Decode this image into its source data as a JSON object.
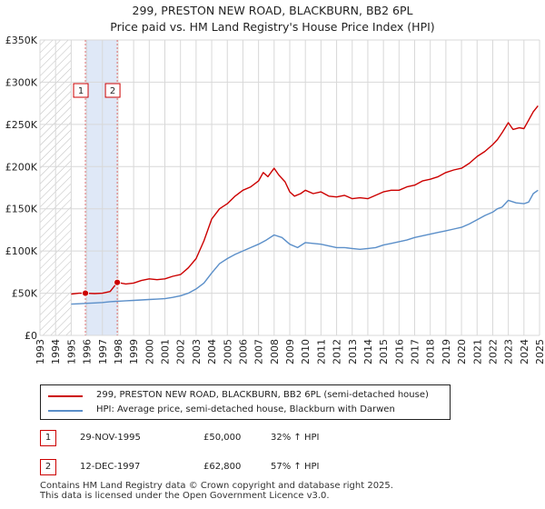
{
  "title_line1": "299, PRESTON NEW ROAD, BLACKBURN, BB2 6PL",
  "title_line2": "Price paid vs. HM Land Registry's House Price Index (HPI)",
  "chart_data": {
    "type": "line",
    "title": "299, PRESTON NEW ROAD, BLACKBURN, BB2 6PL — Price paid vs. HM Land Registry's House Price Index (HPI)",
    "xlabel": "",
    "ylabel": "",
    "xlim": [
      1993,
      2025
    ],
    "ylim": [
      0,
      350000
    ],
    "x_ticks": [
      1993,
      1994,
      1995,
      1996,
      1997,
      1998,
      1999,
      2000,
      2001,
      2002,
      2003,
      2004,
      2005,
      2006,
      2007,
      2008,
      2009,
      2010,
      2011,
      2012,
      2013,
      2014,
      2015,
      2016,
      2017,
      2018,
      2019,
      2020,
      2021,
      2022,
      2023,
      2024,
      2025
    ],
    "y_ticks": [
      0,
      50000,
      100000,
      150000,
      200000,
      250000,
      300000,
      350000
    ],
    "y_tick_labels": [
      "£0",
      "£50K",
      "£100K",
      "£150K",
      "£200K",
      "£250K",
      "£300K",
      "£350K"
    ],
    "grid": true,
    "hatched_region_until": 1995.0,
    "shaded_between": [
      1995.91,
      1997.95
    ],
    "series": [
      {
        "name": "299, PRESTON NEW ROAD, BLACKBURN, BB2 6PL (semi-detached house)",
        "color": "#cc0000",
        "x": [
          1995.0,
          1995.5,
          1995.91,
          1996.5,
          1997.0,
          1997.5,
          1997.95,
          1998.5,
          1999.0,
          1999.5,
          2000.0,
          2000.5,
          2001.0,
          2001.5,
          2002.0,
          2002.5,
          2003.0,
          2003.5,
          2004.0,
          2004.5,
          2005.0,
          2005.5,
          2006.0,
          2006.5,
          2007.0,
          2007.3,
          2007.6,
          2008.0,
          2008.3,
          2008.7,
          2009.0,
          2009.3,
          2009.7,
          2010.0,
          2010.5,
          2011.0,
          2011.5,
          2012.0,
          2012.5,
          2013.0,
          2013.5,
          2014.0,
          2014.5,
          2015.0,
          2015.5,
          2016.0,
          2016.5,
          2017.0,
          2017.5,
          2018.0,
          2018.5,
          2019.0,
          2019.5,
          2020.0,
          2020.5,
          2021.0,
          2021.5,
          2022.0,
          2022.3,
          2022.6,
          2023.0,
          2023.3,
          2023.7,
          2024.0,
          2024.3,
          2024.6,
          2024.9
        ],
        "y": [
          49000,
          50000,
          50000,
          49500,
          50000,
          52000,
          62800,
          61000,
          62000,
          65000,
          67000,
          66000,
          67000,
          70000,
          72000,
          80000,
          91000,
          112000,
          138000,
          150000,
          156000,
          165000,
          172000,
          176000,
          183000,
          193000,
          188000,
          198000,
          190000,
          182000,
          170000,
          165000,
          168000,
          172000,
          168000,
          170000,
          165000,
          164000,
          166000,
          162000,
          163000,
          162000,
          166000,
          170000,
          172000,
          172000,
          176000,
          178000,
          183000,
          185000,
          188000,
          193000,
          196000,
          198000,
          204000,
          212000,
          218000,
          226000,
          232000,
          240000,
          252000,
          244000,
          246000,
          245000,
          255000,
          265000,
          272000
        ]
      },
      {
        "name": "HPI: Average price, semi-detached house, Blackburn with Darwen",
        "color": "#5b8fc9",
        "x": [
          1995.0,
          1995.5,
          1996.0,
          1996.5,
          1997.0,
          1997.5,
          1998.0,
          1998.5,
          1999.0,
          1999.5,
          2000.0,
          2000.5,
          2001.0,
          2001.5,
          2002.0,
          2002.5,
          2003.0,
          2003.5,
          2004.0,
          2004.5,
          2005.0,
          2005.5,
          2006.0,
          2006.5,
          2007.0,
          2007.5,
          2008.0,
          2008.5,
          2009.0,
          2009.5,
          2010.0,
          2010.5,
          2011.0,
          2011.5,
          2012.0,
          2012.5,
          2013.0,
          2013.5,
          2014.0,
          2014.5,
          2015.0,
          2015.5,
          2016.0,
          2016.5,
          2017.0,
          2017.5,
          2018.0,
          2018.5,
          2019.0,
          2019.5,
          2020.0,
          2020.5,
          2021.0,
          2021.5,
          2022.0,
          2022.3,
          2022.6,
          2023.0,
          2023.5,
          2024.0,
          2024.3,
          2024.6,
          2024.9
        ],
        "y": [
          37000,
          37500,
          38000,
          38500,
          39000,
          40000,
          40500,
          41000,
          41500,
          42000,
          42500,
          43000,
          43500,
          45000,
          47000,
          50000,
          55000,
          62000,
          74000,
          85000,
          91000,
          96000,
          100000,
          104000,
          108000,
          113000,
          119000,
          116000,
          108000,
          104000,
          110000,
          109000,
          108000,
          106000,
          104000,
          104000,
          103000,
          102000,
          103000,
          104000,
          107000,
          109000,
          111000,
          113000,
          116000,
          118000,
          120000,
          122000,
          124000,
          126000,
          128000,
          132000,
          137000,
          142000,
          146000,
          150000,
          152000,
          160000,
          157000,
          156000,
          158000,
          168000,
          172000
        ]
      }
    ],
    "sales": [
      {
        "label": "1",
        "x": 1995.91,
        "y": 50000
      },
      {
        "label": "2",
        "x": 1997.95,
        "y": 62800
      }
    ]
  },
  "legend": {
    "property_label": "299, PRESTON NEW ROAD, BLACKBURN, BB2 6PL (semi-detached house)",
    "hpi_label": "HPI: Average price, semi-detached house, Blackburn with Darwen"
  },
  "sales_table": [
    {
      "num": "1",
      "date": "29-NOV-1995",
      "price": "£50,000",
      "hpi": "32% ↑ HPI"
    },
    {
      "num": "2",
      "date": "12-DEC-1997",
      "price": "£62,800",
      "hpi": "57% ↑ HPI"
    }
  ],
  "footer": {
    "line1": "Contains HM Land Registry data © Crown copyright and database right 2025.",
    "line2": "This data is licensed under the Open Government Licence v3.0."
  },
  "colors": {
    "property": "#cc0000",
    "hpi": "#5b8fc9",
    "grid": "#d8d8d8",
    "shade": "#dfe8f7"
  }
}
